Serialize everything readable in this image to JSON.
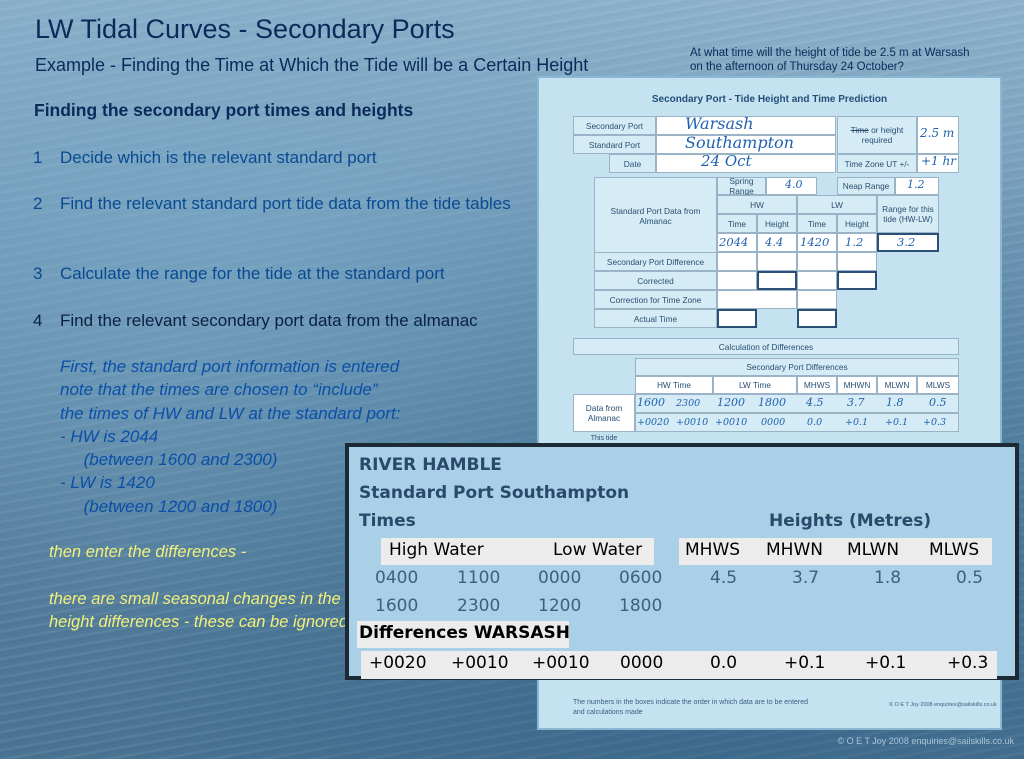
{
  "slide": {
    "title": "LW Tidal Curves - Secondary Ports",
    "subtitle": "Example - Finding the Time at Which the Tide will be a Certain Height",
    "question_line1": "At what time will the height of tide be 2.5 m at Warsash",
    "question_line2": "on the afternoon of Thursday 24 October?",
    "section_heading": "Finding the secondary port times and heights",
    "steps": [
      {
        "num": "1",
        "text": "Decide which is the relevant standard port"
      },
      {
        "num": "2",
        "text": "Find the relevant standard port tide data from the tide tables"
      },
      {
        "num": "3",
        "text": "Calculate the range for the tide at the standard port"
      },
      {
        "num": "4",
        "text": "Find the relevant secondary port data from the almanac"
      }
    ],
    "notes": [
      "First, the standard port information is entered",
      "note that the times are chosen to “include”",
      "the times of HW and LW at the standard port:",
      "-   HW is 2044",
      "     (between 1600 and 2300)",
      "-   LW is 1420",
      "     (between 1200 and 1800)"
    ],
    "yellow_note1": "then enter the differences -",
    "yellow_note2": "there are small seasonal changes in the height differences - these can be ignored",
    "copyright": "© O E T Joy 2008 enquiries@sailskills.co.uk"
  },
  "form": {
    "title": "Secondary Port - Tide Height and Time Prediction",
    "secondary_port_label": "Secondary Port",
    "secondary_port_value": "Warsash",
    "standard_port_label": "Standard Port",
    "standard_port_value": "Southampton",
    "date_label": "Date",
    "date_value": "24 Oct",
    "time_or_height_struck": "Time",
    "time_or_height_label": " or height",
    "required_label": "required",
    "required_value": "2.5 m",
    "timezone_label": "Time Zone UT +/-",
    "timezone_value": "+1 hr",
    "spring_range_label": "Spring Range",
    "spring_range_value": "4.0",
    "neap_range_label": "Neap Range",
    "neap_range_value": "1.2",
    "std_port_data_label": "Standard Port Data from Almanac",
    "hw_label": "HW",
    "lw_label": "LW",
    "time_label": "Time",
    "height_label": "Height",
    "range_label": "Range for this tide (HW-LW)",
    "hw_time": "2044",
    "hw_height": "4.4",
    "lw_time": "1420",
    "lw_height": "1.2",
    "range_value": "3.2",
    "sec_port_diff_label": "Secondary Port Difference",
    "corrected_label": "Corrected",
    "correction_tz_label": "Correction for Time Zone",
    "actual_time_label": "Actual Time",
    "calc_diff_label": "Calculation of Differences",
    "sec_port_diffs_label": "Secondary Port Differences",
    "col_headers": [
      "HW Time",
      "LW Time",
      "MHWS",
      "MHWN",
      "MLWN",
      "MLWS"
    ],
    "data_from_almanac_label": "Data from Almanac",
    "row1": [
      "1600",
      "2300",
      "1200",
      "1800",
      "4.5",
      "3.7",
      "1.8",
      "0.5"
    ],
    "row2": [
      "+0020",
      "+0010",
      "+0010",
      "0000",
      "0.0",
      "+0.1",
      "+0.1",
      "+0.3"
    ],
    "this_tide_label": "This tide",
    "footnote": "The numbers in the boxes indicate the order in which data are to be entered and calculations made",
    "copyright": "© O E T Joy 2008 enquiries@sailskills.co.uk"
  },
  "almanac": {
    "heading1": "RIVER HAMBLE",
    "heading2": "Standard Port Southampton",
    "times_label": "Times",
    "heights_label": "Heights (Metres)",
    "high_water": "High Water",
    "low_water": "Low Water",
    "height_cols": [
      "MHWS",
      "MHWN",
      "MLWN",
      "MLWS"
    ],
    "row1": [
      "0400",
      "1100",
      "0000",
      "0600",
      "4.5",
      "3.7",
      "1.8",
      "0.5"
    ],
    "row2": [
      "1600",
      "2300",
      "1200",
      "1800"
    ],
    "differences_label": "Differences WARSASH",
    "diffs": [
      "+0020",
      "+0010",
      "+0010",
      "0000",
      "0.0",
      "+0.1",
      "+0.1",
      "+0.3"
    ]
  }
}
